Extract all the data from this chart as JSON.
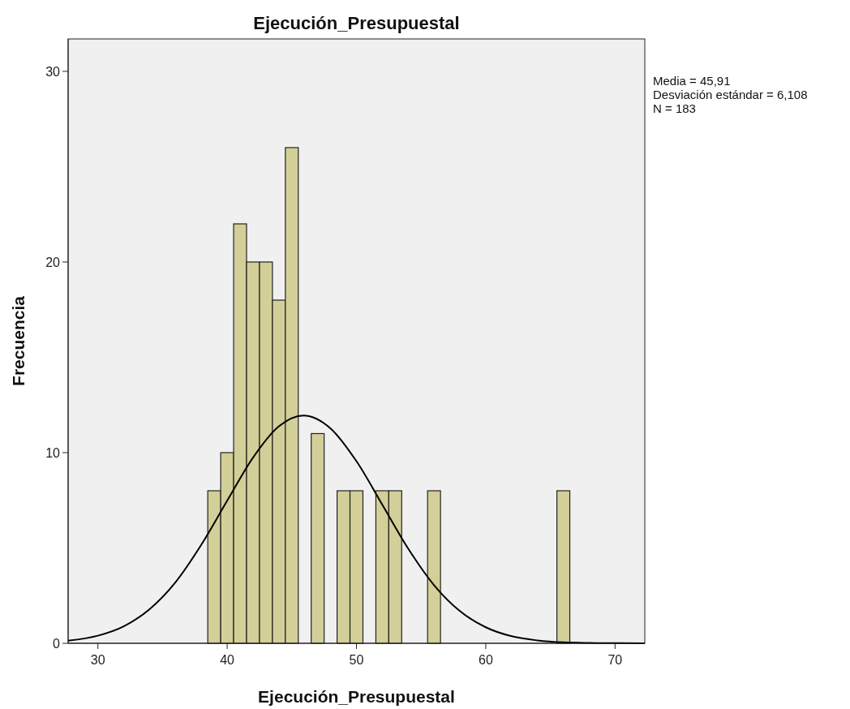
{
  "chart_data": {
    "type": "histogram",
    "title": "Ejecución_Presupuestal",
    "xlabel": "Ejecución_Presupuestal",
    "ylabel": "Frecuencia",
    "annotations": [
      "Media = 45,91",
      "Desviación estándar = 6,108",
      "N = 183"
    ],
    "xlim": [
      27.7,
      72.3
    ],
    "xticks": [
      30,
      40,
      50,
      60,
      70
    ],
    "ylim": [
      0,
      31.7
    ],
    "yticks": [
      0,
      10,
      20,
      30
    ],
    "grid": false,
    "series": [
      {
        "color": "#d3cf98",
        "bins": [
          38.5,
          39.5,
          40.5,
          41.5,
          42.5,
          43.5,
          44.5,
          45.5,
          46.5,
          47.5,
          48.5,
          49.5,
          50.5,
          51.5,
          52.5,
          53.5,
          54.5,
          55.5,
          56.5,
          57.5,
          58.5,
          59.5,
          60.5,
          61.5,
          62.5,
          63.5,
          64.5,
          65.5,
          66.5
        ],
        "values": [
          8,
          10,
          22,
          20,
          20,
          18,
          26,
          0,
          11,
          0,
          8,
          8,
          0,
          8,
          8,
          0,
          0,
          8,
          0,
          0,
          0,
          0,
          0,
          0,
          0,
          0,
          0,
          8
        ]
      },
      {
        "type": "line",
        "color": "#000000",
        "x": [
          27.7,
          30,
          32,
          34,
          36,
          38,
          40,
          42,
          44,
          45.91,
          48,
          50,
          52,
          54,
          56,
          58,
          60,
          62,
          64,
          66,
          68,
          70,
          72.3
        ],
        "values": [
          0.14,
          0.4,
          0.89,
          1.79,
          3.2,
          5.17,
          7.48,
          9.74,
          11.38,
          11.95,
          11.27,
          9.55,
          7.27,
          4.97,
          3.05,
          1.69,
          0.84,
          0.37,
          0.15,
          0.05,
          0.02,
          0.01,
          0
        ]
      }
    ]
  }
}
